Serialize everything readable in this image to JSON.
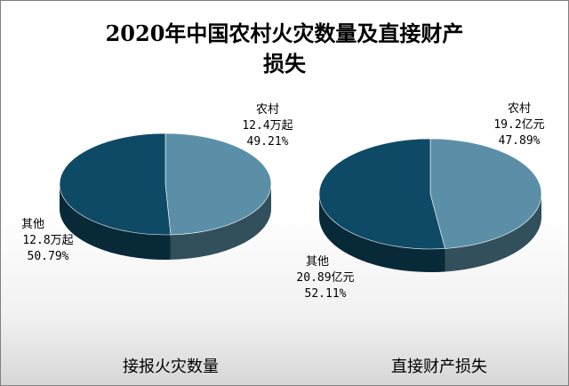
{
  "title_line1": "2020年中国农村火灾数量及直接财产",
  "title_line2": "损失",
  "chart_data": [
    {
      "type": "pie",
      "title": "接报火灾数量",
      "slices": [
        {
          "name": "农村",
          "value_label": "12.4万起",
          "percent_label": "49.21%",
          "value": 12.4,
          "percent": 49.21,
          "color": "#5b8fa8"
        },
        {
          "name": "其他",
          "value_label": "12.8万起",
          "percent_label": "50.79%",
          "value": 12.8,
          "percent": 50.79,
          "color": "#0e4a66"
        }
      ]
    },
    {
      "type": "pie",
      "title": "直接财产损失",
      "slices": [
        {
          "name": "农村",
          "value_label": "19.2亿元",
          "percent_label": "47.89%",
          "value": 19.2,
          "percent": 47.89,
          "color": "#5b8fa8"
        },
        {
          "name": "其他",
          "value_label": "20.89亿元",
          "percent_label": "52.11%",
          "value": 20.89,
          "percent": 52.11,
          "color": "#0e4a66"
        }
      ]
    }
  ]
}
